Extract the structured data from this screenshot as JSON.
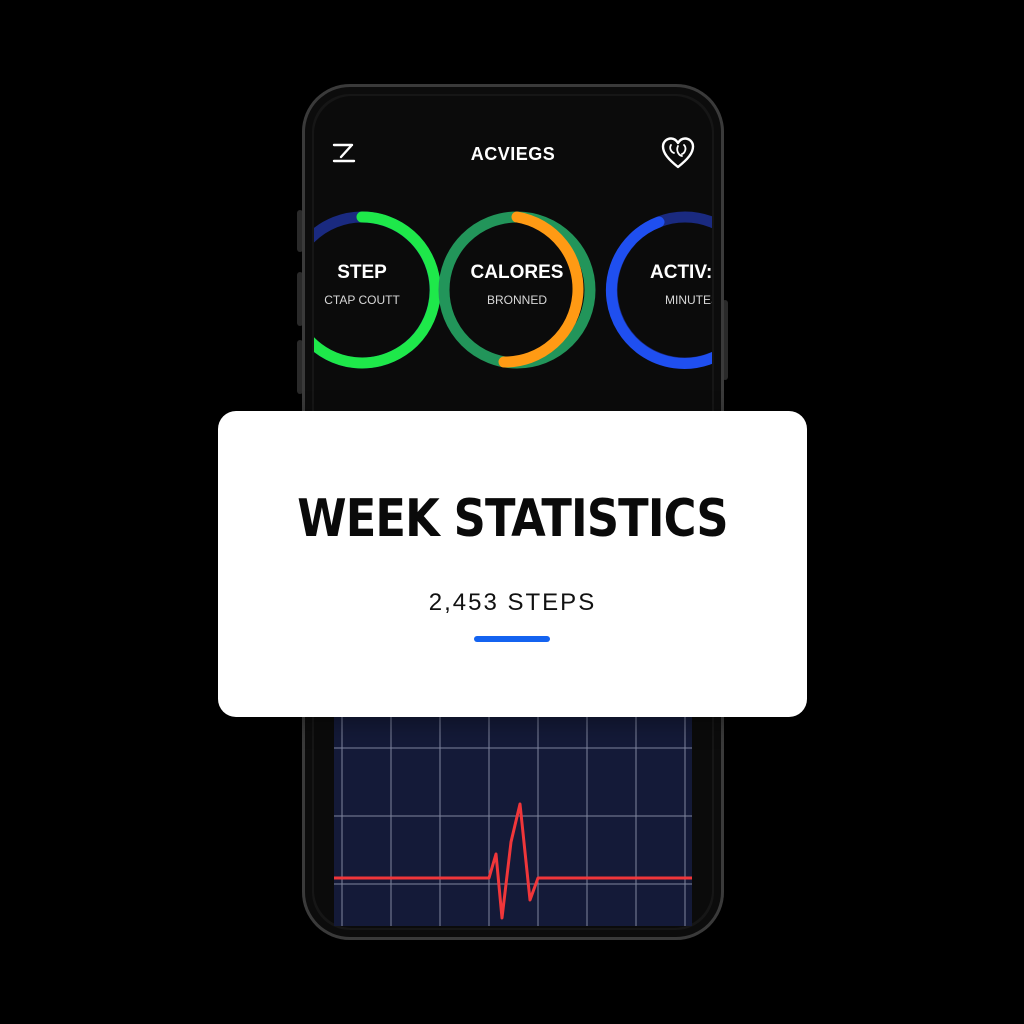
{
  "header": {
    "title": "ACVIEGS",
    "menu_icon": "menu-edit-icon",
    "heart_icon": "heart-icon"
  },
  "rings": [
    {
      "label": "STEP",
      "sublabel": "CTAP COUTT",
      "progress_color": "#1ee84a",
      "track_color": "#1a2a80"
    },
    {
      "label": "CALORES",
      "sublabel": "BRONNED",
      "progress_color": "#ff9a14",
      "track_color": "#22955a"
    },
    {
      "label": "ACTIV:",
      "sublabel": "MINUTES",
      "progress_color": "#1f4ff0",
      "track_color": "#1a2a80"
    }
  ],
  "card": {
    "title": "WEEK STATISTICS",
    "value": "2,453 STEPS",
    "accent_color": "#1463f0"
  },
  "chart": {
    "background": "#141a38",
    "grid_color": "#9aa0b8",
    "line_color": "#f0363a"
  }
}
